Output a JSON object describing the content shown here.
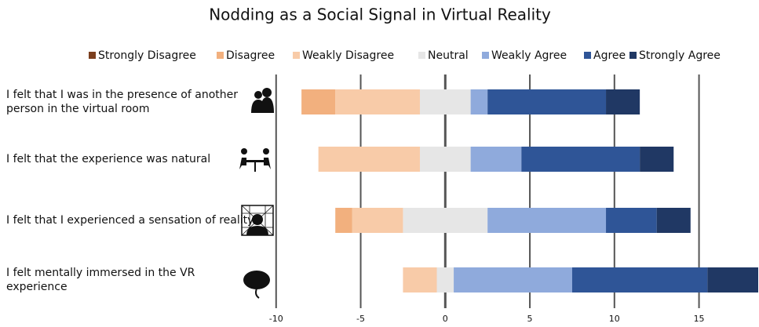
{
  "chart_data": {
    "type": "diverging_bar",
    "title": "Nodding as a Social Signal in Virtual Reality",
    "categories": [
      "I felt that I was in the presence of another person in the virtual room",
      "I felt that the experience was natural",
      "I felt that I experienced a sensation of reality",
      "I felt mentally immersed in the VR experience"
    ],
    "series": [
      {
        "name": "Strongly Disagree",
        "color": "#7b3f1e",
        "side": "left",
        "values": [
          0,
          0,
          0,
          0
        ]
      },
      {
        "name": "Disagree",
        "color": "#f2b07e",
        "side": "left",
        "values": [
          2,
          0,
          1,
          0
        ]
      },
      {
        "name": "Weakly Disagree",
        "color": "#f8cba8",
        "side": "left",
        "values": [
          5,
          6,
          3,
          2
        ]
      },
      {
        "name": "Neutral",
        "color": "#e6e6e6",
        "side": "center",
        "values": [
          3,
          3,
          5,
          1
        ]
      },
      {
        "name": "Weakly Agree",
        "color": "#8faadc",
        "side": "right",
        "values": [
          1,
          3,
          7,
          7
        ]
      },
      {
        "name": "Agree",
        "color": "#2f5597",
        "side": "right",
        "values": [
          7,
          7,
          3,
          8
        ]
      },
      {
        "name": "Strongly Agree",
        "color": "#203864",
        "side": "right",
        "values": [
          2,
          2,
          2,
          3
        ]
      }
    ],
    "xlim": [
      -10.5,
      18.5
    ],
    "xticks": [
      -10,
      -5,
      0,
      5,
      10,
      15
    ],
    "grid": true
  }
}
